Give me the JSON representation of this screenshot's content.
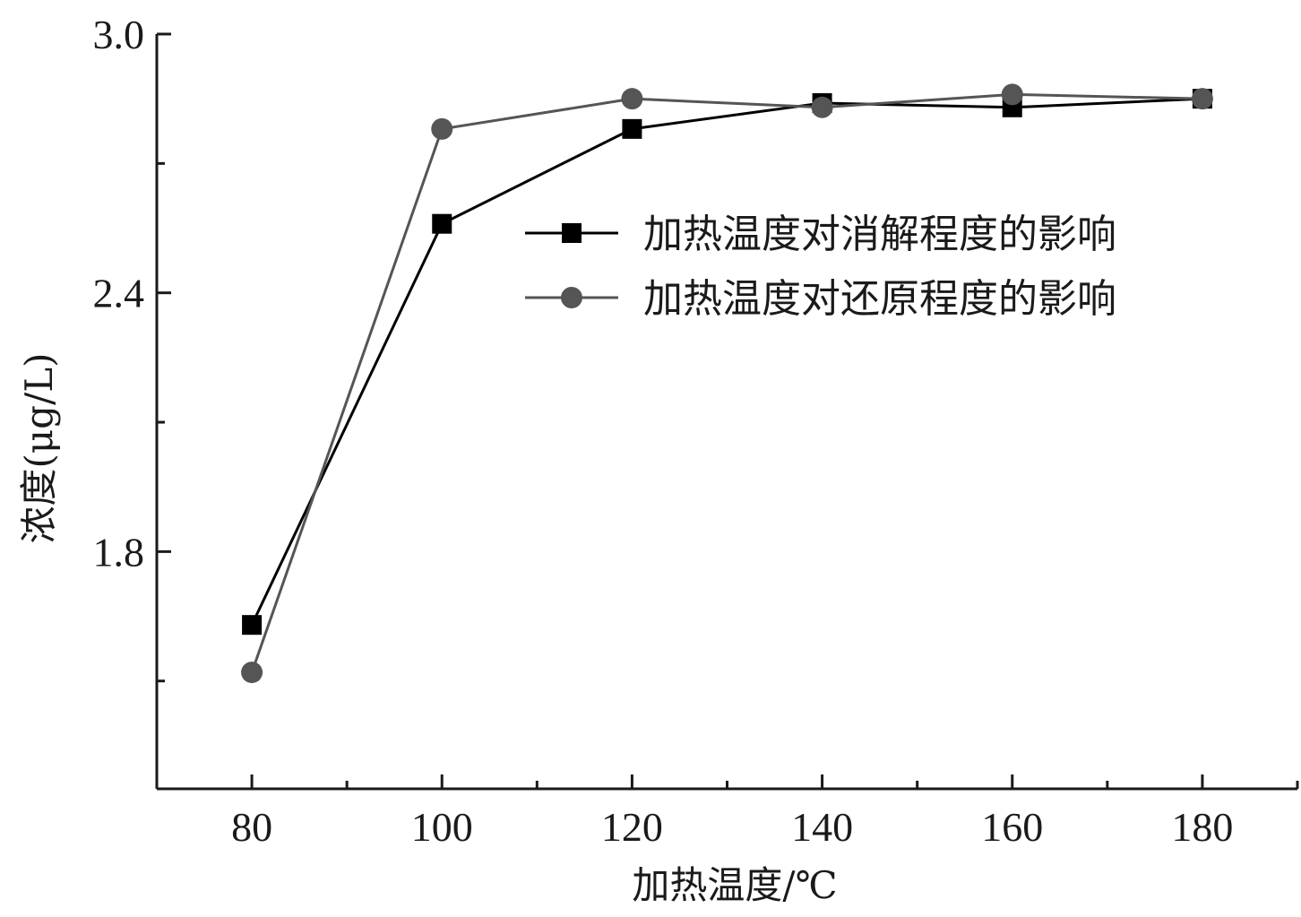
{
  "chart_data": {
    "type": "line",
    "title": "",
    "xlabel": "加热温度/℃",
    "ylabel": "浓度(μg/L)",
    "x": [
      80,
      100,
      120,
      140,
      160,
      180
    ],
    "x_tick_labels": [
      "80",
      "100",
      "120",
      "140",
      "160",
      "180"
    ],
    "y_tick_labels": [
      "1.8",
      "2.4",
      "3.0"
    ],
    "xlim": [
      70,
      190
    ],
    "ylim": [
      1.25,
      3.0
    ],
    "grid": false,
    "legend_position": "upper-right-center",
    "series": [
      {
        "name": "加热温度对消解程度的影响",
        "marker": "square",
        "color": "#000000",
        "values": [
          1.63,
          2.56,
          2.78,
          2.84,
          2.83,
          2.85
        ]
      },
      {
        "name": "加热温度对还原程度的影响",
        "marker": "circle",
        "color": "#555555",
        "values": [
          1.52,
          2.78,
          2.85,
          2.83,
          2.86,
          2.85
        ]
      }
    ]
  }
}
